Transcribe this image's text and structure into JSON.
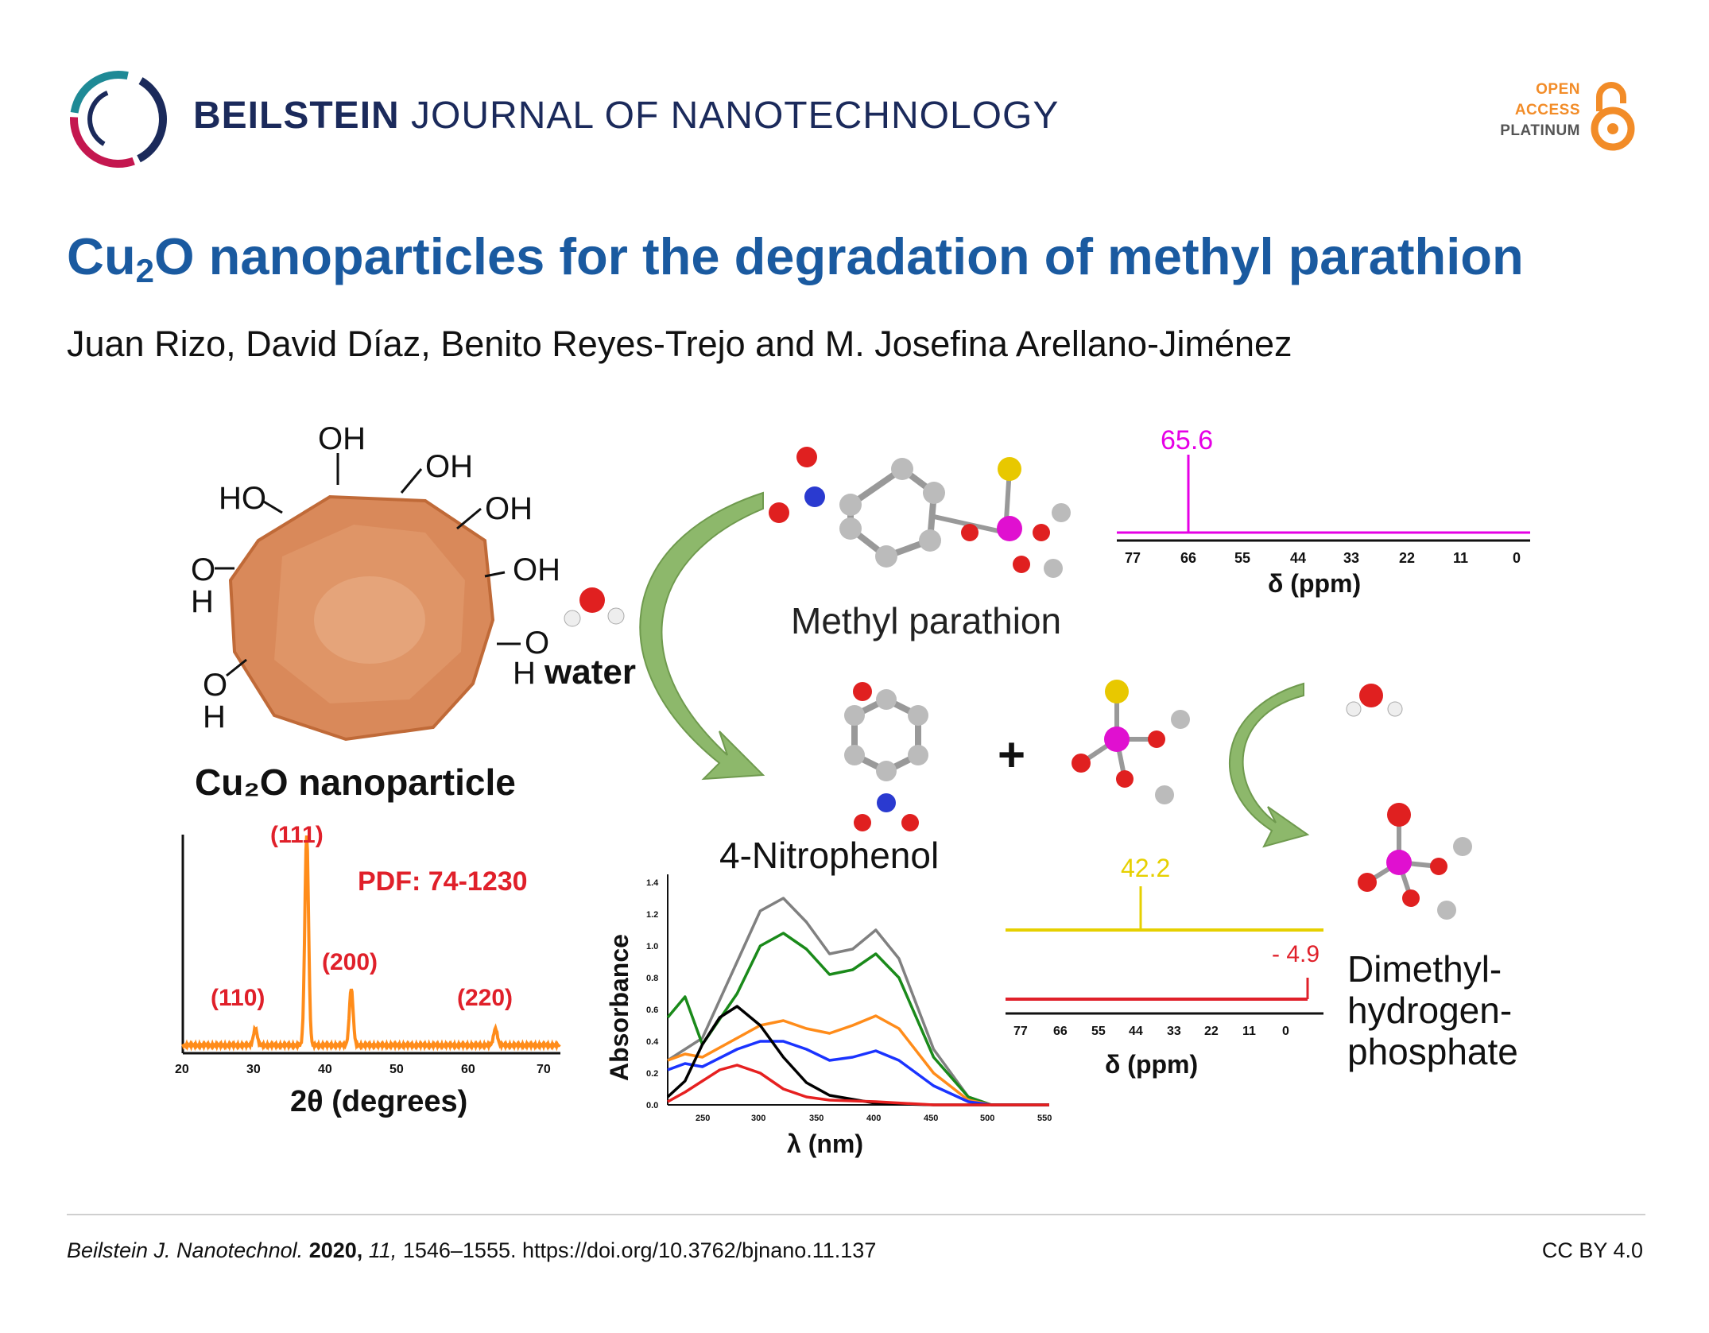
{
  "header": {
    "journal_bold": "BEILSTEIN",
    "journal_rest": "JOURNAL OF NANOTECHNOLOGY",
    "open_access": [
      "OPEN",
      "ACCESS",
      "PLATINUM"
    ],
    "colors": {
      "journal": "#1b2a5b",
      "open_access": "#f28c28",
      "title": "#1a5aa0"
    }
  },
  "article": {
    "title_prefix": "Cu",
    "title_sub": "2",
    "title_rest": "O nanoparticles for the degradation of methyl parathion",
    "authors": "Juan Rizo, David Díaz, Benito Reyes-Trejo and M. Josefina Arellano-Jiménez"
  },
  "figure": {
    "particle_label": "Cu₂O nanoparticle",
    "surface_groups": [
      "OH",
      "OH",
      "HO",
      "OH",
      "OH",
      "O H",
      "O H",
      "O H"
    ],
    "water_label": "water",
    "mp_label": "Methyl parathion",
    "np_label": "4-Nitrophenol",
    "plus": "+",
    "dmhp_label": [
      "Dimethyl-",
      "hydrogen-",
      "phosphate"
    ],
    "xrd": {
      "pdf": "PDF: 74-1230",
      "xlabel": "2θ (degrees)",
      "ticks": [
        "20",
        "30",
        "40",
        "50",
        "60",
        "70"
      ],
      "peaks": [
        {
          "label": "(110)",
          "two_theta": 29.6,
          "height": 0.08
        },
        {
          "label": "(111)",
          "two_theta": 36.4,
          "height": 1.0
        },
        {
          "label": "(200)",
          "two_theta": 42.3,
          "height": 0.27
        },
        {
          "label": "(220)",
          "two_theta": 61.4,
          "height": 0.08
        }
      ]
    },
    "nmr_top": {
      "peak_label": "65.6",
      "ticks": [
        "77",
        "66",
        "55",
        "44",
        "33",
        "22",
        "11",
        "0"
      ],
      "xlabel": "δ (ppm)",
      "color": "#e600e6"
    },
    "nmr_bottom": {
      "peak_labels": [
        "42.2",
        "- 4.9"
      ],
      "ticks": [
        "77",
        "66",
        "55",
        "44",
        "33",
        "22",
        "11",
        "0"
      ],
      "xlabel": "δ (ppm)",
      "colors": [
        "#e6d000",
        "#e0202a"
      ]
    },
    "uvvis": {
      "ylabel": "Absorbance",
      "xlabel": "λ (nm)",
      "xticks": [
        "250",
        "300",
        "350",
        "400",
        "450",
        "500",
        "550"
      ],
      "yticks": [
        "0.0",
        "0.2",
        "0.4",
        "0.6",
        "0.8",
        "1.0",
        "1.2",
        "1.4"
      ]
    }
  },
  "chart_data": [
    {
      "type": "line",
      "title": "",
      "xlabel": "2θ (degrees)",
      "ylabel": "",
      "xlim": [
        20,
        70
      ],
      "annotation": "PDF: 74-1230",
      "peaks_x": [
        29.6,
        36.4,
        42.3,
        61.4
      ],
      "peak_labels": [
        "(110)",
        "(111)",
        "(200)",
        "(220)"
      ]
    },
    {
      "type": "line",
      "xlabel": "λ (nm)",
      "ylabel": "Absorbance",
      "xlim": [
        220,
        550
      ],
      "ylim": [
        0.0,
        1.4
      ],
      "series": [
        {
          "color": "#808080",
          "x": [
            220,
            235,
            250,
            280,
            300,
            320,
            340,
            360,
            380,
            400,
            420,
            450,
            480,
            500,
            550
          ],
          "values": [
            0.28,
            0.35,
            0.42,
            0.9,
            1.22,
            1.3,
            1.15,
            0.95,
            0.98,
            1.1,
            0.92,
            0.35,
            0.05,
            0.0,
            0.0
          ]
        },
        {
          "color": "#1a8a1a",
          "x": [
            220,
            235,
            250,
            280,
            300,
            320,
            340,
            360,
            380,
            400,
            420,
            450,
            480,
            500,
            550
          ],
          "values": [
            0.55,
            0.68,
            0.38,
            0.7,
            1.0,
            1.08,
            0.98,
            0.82,
            0.85,
            0.95,
            0.8,
            0.3,
            0.05,
            0.0,
            0.0
          ]
        },
        {
          "color": "#ff8c1a",
          "x": [
            220,
            235,
            250,
            280,
            300,
            320,
            340,
            360,
            380,
            400,
            420,
            450,
            480,
            500,
            550
          ],
          "values": [
            0.28,
            0.32,
            0.3,
            0.42,
            0.5,
            0.53,
            0.48,
            0.45,
            0.5,
            0.56,
            0.48,
            0.2,
            0.03,
            0.0,
            0.0
          ]
        },
        {
          "color": "#1a33ff",
          "x": [
            220,
            235,
            250,
            280,
            300,
            320,
            340,
            360,
            380,
            400,
            420,
            450,
            480,
            500,
            550
          ],
          "values": [
            0.22,
            0.26,
            0.24,
            0.35,
            0.4,
            0.4,
            0.35,
            0.28,
            0.3,
            0.34,
            0.28,
            0.12,
            0.02,
            0.0,
            0.0
          ]
        },
        {
          "color": "#000000",
          "x": [
            220,
            235,
            250,
            265,
            280,
            300,
            320,
            340,
            360,
            400,
            450,
            500,
            550
          ],
          "values": [
            0.05,
            0.15,
            0.38,
            0.55,
            0.62,
            0.5,
            0.3,
            0.14,
            0.06,
            0.01,
            0.0,
            0.0,
            0.0
          ]
        },
        {
          "color": "#e62020",
          "x": [
            220,
            235,
            250,
            265,
            280,
            300,
            320,
            340,
            360,
            400,
            450,
            500,
            550
          ],
          "values": [
            0.02,
            0.08,
            0.15,
            0.22,
            0.25,
            0.2,
            0.1,
            0.05,
            0.03,
            0.02,
            0.0,
            0.0,
            0.0
          ]
        }
      ]
    },
    {
      "type": "line",
      "xlabel": "δ (ppm)",
      "xlim": [
        77,
        0
      ],
      "series": [
        {
          "name": "65.6",
          "peak_x": 65.6,
          "color": "#e600e6"
        }
      ]
    },
    {
      "type": "line",
      "xlabel": "δ (ppm)",
      "xlim": [
        77,
        0
      ],
      "series": [
        {
          "name": "42.2",
          "peak_x": 42.2,
          "color": "#e6d000"
        },
        {
          "name": "- 4.9",
          "peak_x": -4.9,
          "color": "#e0202a"
        }
      ]
    }
  ]
}
